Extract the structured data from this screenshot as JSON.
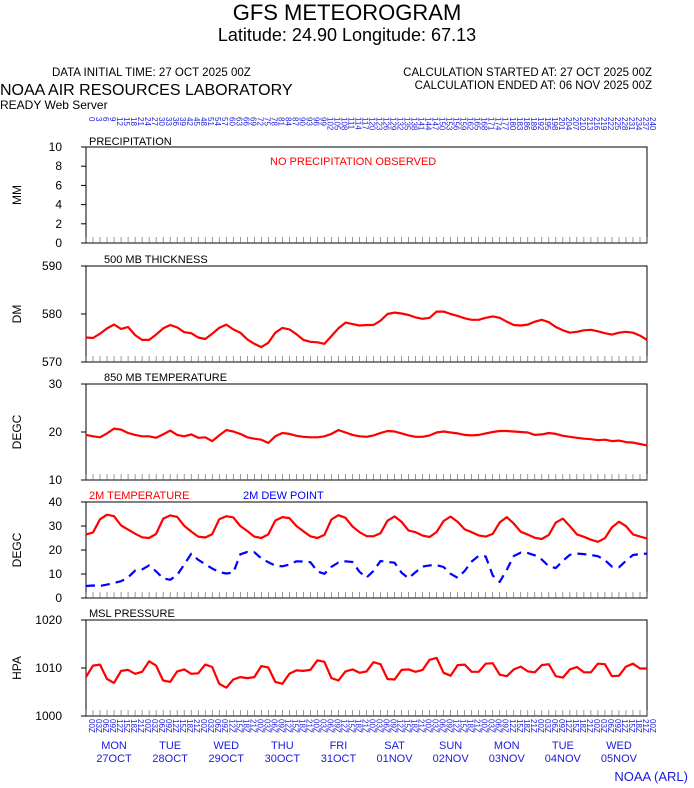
{
  "header": {
    "title": "GFS METEOROGRAM",
    "subtitle": "Latitude: 24.90 Longitude:  67.13",
    "data_initial_time": "DATA INITIAL TIME: 27 OCT 2025 00Z",
    "calc_started": "CALCULATION STARTED AT: 27 OCT 2025 00Z",
    "calc_ended": "CALCULATION ENDED AT: 06 NOV 2025 00Z",
    "lab": "NOAA AIR RESOURCES LABORATORY",
    "server": "READY Web Server"
  },
  "footer": {
    "credit": "NOAA (ARL)"
  },
  "colors": {
    "red": "#ff0000",
    "blue": "#0000ff",
    "axis_blue": "#1a1adc",
    "grid": "#000000"
  },
  "chart_data": {
    "type": "line",
    "forecast_hours": [
      "0",
      "3",
      "6",
      "9",
      "12",
      "15",
      "18",
      "21",
      "24",
      "27",
      "30",
      "33",
      "36",
      "39",
      "42",
      "45",
      "48",
      "51",
      "54",
      "57",
      "60",
      "63",
      "66",
      "69",
      "72",
      "75",
      "78",
      "81",
      "84",
      "87",
      "90",
      "93",
      "96",
      "99",
      "102",
      "105",
      "108",
      "111",
      "114",
      "117",
      "120",
      "123",
      "126",
      "129",
      "132",
      "135",
      "138",
      "141",
      "144",
      "147",
      "150",
      "153",
      "156",
      "159",
      "162",
      "165",
      "168",
      "171",
      "174",
      "177",
      "180",
      "183",
      "186",
      "189",
      "192",
      "195",
      "198",
      "201",
      "204",
      "207",
      "210",
      "213",
      "216",
      "219",
      "222",
      "225",
      "228",
      "231",
      "234",
      "237",
      "240"
    ],
    "time_labels": [
      "00Z",
      "03Z",
      "06Z",
      "09Z",
      "12Z",
      "15Z",
      "18Z",
      "21Z",
      "00Z",
      "03Z",
      "06Z",
      "09Z",
      "12Z",
      "15Z",
      "18Z",
      "21Z",
      "00Z",
      "03Z",
      "06Z",
      "09Z",
      "12Z",
      "15Z",
      "18Z",
      "21Z",
      "00Z",
      "03Z",
      "06Z",
      "09Z",
      "12Z",
      "15Z",
      "18Z",
      "21Z",
      "00Z",
      "03Z",
      "06Z",
      "09Z",
      "12Z",
      "15Z",
      "18Z",
      "21Z",
      "00Z",
      "03Z",
      "06Z",
      "09Z",
      "12Z",
      "15Z",
      "18Z",
      "21Z",
      "00Z",
      "03Z",
      "06Z",
      "09Z",
      "12Z",
      "15Z",
      "18Z",
      "21Z",
      "00Z",
      "03Z",
      "06Z",
      "09Z",
      "12Z",
      "15Z",
      "18Z",
      "21Z",
      "00Z",
      "03Z",
      "06Z",
      "09Z",
      "12Z",
      "15Z",
      "18Z",
      "21Z",
      "00Z",
      "03Z",
      "06Z",
      "09Z",
      "12Z",
      "15Z",
      "18Z",
      "21Z",
      "00Z"
    ],
    "days": [
      {
        "weekday": "MON",
        "date": "27OCT"
      },
      {
        "weekday": "TUE",
        "date": "28OCT"
      },
      {
        "weekday": "WED",
        "date": "29OCT"
      },
      {
        "weekday": "THU",
        "date": "30OCT"
      },
      {
        "weekday": "FRI",
        "date": "31OCT"
      },
      {
        "weekday": "SAT",
        "date": "01NOV"
      },
      {
        "weekday": "SUN",
        "date": "02NOV"
      },
      {
        "weekday": "MON",
        "date": "03NOV"
      },
      {
        "weekday": "TUE",
        "date": "04NOV"
      },
      {
        "weekday": "WED",
        "date": "05NOV"
      }
    ],
    "panels": [
      {
        "label": "PRECIPITATION",
        "ylabel": "MM",
        "ylim": [
          0,
          10
        ],
        "yticks": [
          "0",
          "2",
          "4",
          "6",
          "8",
          "10"
        ],
        "annotation": "NO PRECIPITATION OBSERVED",
        "series": []
      },
      {
        "label": "500 MB  THICKNESS",
        "ylabel": "DM",
        "ylim": [
          570,
          590
        ],
        "yticks": [
          "570",
          "580",
          "590"
        ],
        "series": [
          {
            "color": "red",
            "dashed": false,
            "values": [
              575.1,
              575.0,
              575.9,
              577.0,
              577.8,
              576.9,
              577.3,
              575.6,
              574.6,
              574.6,
              575.7,
              577.0,
              577.7,
              577.2,
              576.2,
              576.0,
              575.1,
              574.8,
              575.9,
              577.1,
              577.8,
              576.8,
              576.1,
              574.7,
              573.8,
              573.1,
              574.0,
              576.1,
              577.1,
              576.8,
              575.8,
              574.6,
              574.2,
              574.1,
              573.8,
              575.4,
              577.0,
              578.2,
              577.9,
              577.6,
              577.7,
              577.7,
              578.6,
              580.0,
              580.3,
              580.1,
              579.8,
              579.3,
              579.0,
              579.2,
              580.5,
              580.5,
              580.0,
              579.6,
              579.1,
              578.8,
              578.8,
              579.2,
              579.5,
              579.2,
              578.4,
              577.7,
              577.6,
              577.8,
              578.4,
              578.8,
              578.3,
              577.3,
              576.6,
              576.1,
              576.3,
              576.6,
              576.7,
              576.4,
              576.0,
              575.7,
              576.1,
              576.3,
              576.1,
              575.5,
              574.6
            ]
          }
        ]
      },
      {
        "label": "850 MB  TEMPERATURE",
        "ylabel": "DEGC",
        "ylim": [
          10,
          30
        ],
        "yticks": [
          "10",
          "20",
          "30"
        ],
        "series": [
          {
            "color": "red",
            "dashed": false,
            "values": [
              19.4,
              19.1,
              18.9,
              19.7,
              20.7,
              20.5,
              19.8,
              19.4,
              19.1,
              19.1,
              18.8,
              19.5,
              20.3,
              19.4,
              19.1,
              19.5,
              18.8,
              18.9,
              18.1,
              19.3,
              20.4,
              20.1,
              19.6,
              18.9,
              18.6,
              18.4,
              17.7,
              19.1,
              19.8,
              19.6,
              19.2,
              19.0,
              18.9,
              18.9,
              19.1,
              19.6,
              20.4,
              19.9,
              19.4,
              19.1,
              19.0,
              19.3,
              19.8,
              20.2,
              20.1,
              19.7,
              19.3,
              19.0,
              19.0,
              19.3,
              19.9,
              20.1,
              19.9,
              19.7,
              19.4,
              19.3,
              19.4,
              19.7,
              20.0,
              20.2,
              20.2,
              20.1,
              20.0,
              19.9,
              19.4,
              19.5,
              19.8,
              19.6,
              19.2,
              19.0,
              18.8,
              18.6,
              18.5,
              18.3,
              18.4,
              18.1,
              18.2,
              17.9,
              17.8,
              17.5,
              17.2
            ]
          }
        ]
      },
      {
        "label": "2M TEMPERATURE",
        "label2": "2M  DEW POINT",
        "ylabel": "DEGC",
        "ylim": [
          0,
          40
        ],
        "yticks": [
          "0",
          "10",
          "20",
          "30",
          "40"
        ],
        "series": [
          {
            "name": "2M TEMPERATURE",
            "color": "red",
            "dashed": false,
            "values": [
              26.5,
              27.3,
              32.8,
              34.7,
              34.1,
              30.2,
              28.5,
              26.8,
              25.3,
              25.0,
              26.7,
              33.0,
              34.4,
              33.8,
              30.1,
              27.7,
              25.6,
              25.2,
              26.6,
              32.8,
              34.1,
              33.6,
              30.0,
              27.9,
              25.6,
              25.0,
              26.5,
              32.3,
              33.7,
              33.3,
              30.0,
              27.8,
              25.7,
              25.0,
              26.3,
              32.7,
              34.5,
              33.4,
              29.8,
              27.4,
              25.8,
              25.7,
              27.0,
              32.2,
              34.0,
              31.7,
              28.1,
              27.4,
              26.0,
              25.4,
              27.5,
              32.1,
              33.9,
              31.7,
              28.6,
              27.4,
              26.1,
              25.6,
              26.7,
              31.5,
              33.7,
              31.0,
              27.6,
              26.4,
              25.1,
              24.6,
              26.3,
              31.4,
              33.1,
              29.9,
              26.5,
              25.5,
              24.3,
              23.4,
              24.9,
              29.4,
              31.8,
              29.9,
              26.5,
              25.6,
              24.8
            ]
          },
          {
            "name": "2M  DEW POINT",
            "color": "blue",
            "dashed": true,
            "values": [
              5.0,
              5.2,
              5.0,
              5.6,
              6.3,
              7.0,
              8.6,
              11.4,
              11.9,
              13.6,
              11.1,
              8.2,
              7.6,
              9.6,
              13.9,
              18.4,
              15.9,
              14.1,
              12.3,
              10.8,
              10.2,
              10.6,
              18.2,
              19.2,
              19.1,
              16.5,
              14.9,
              13.5,
              13.2,
              13.9,
              15.3,
              15.2,
              14.9,
              11.1,
              10.1,
              13.0,
              14.8,
              15.3,
              15.0,
              10.9,
              8.5,
              11.3,
              15.4,
              15.0,
              14.7,
              10.5,
              8.2,
              10.8,
              13.1,
              13.6,
              13.7,
              12.9,
              10.1,
              8.4,
              11.3,
              15.2,
              17.6,
              17.3,
              9.4,
              6.7,
              11.8,
              17.5,
              18.9,
              18.7,
              17.8,
              16.0,
              13.2,
              12.5,
              15.5,
              18.0,
              18.5,
              18.3,
              17.9,
              17.4,
              15.8,
              13.1,
              12.8,
              15.5,
              17.9,
              18.3,
              18.5
            ]
          }
        ]
      },
      {
        "label": "MSL PRESSURE",
        "ylabel": "HPA",
        "ylim": [
          1000,
          1020
        ],
        "yticks": [
          "1000",
          "1010",
          "1020"
        ],
        "series": [
          {
            "color": "red",
            "dashed": false,
            "values": [
              1008.1,
              1010.5,
              1010.7,
              1007.7,
              1006.9,
              1009.4,
              1009.6,
              1008.8,
              1009.2,
              1011.4,
              1010.5,
              1007.4,
              1007.1,
              1009.3,
              1009.7,
              1008.8,
              1008.9,
              1010.7,
              1010.2,
              1006.7,
              1005.9,
              1007.6,
              1008.1,
              1007.9,
              1008.1,
              1010.4,
              1010.1,
              1007.1,
              1006.7,
              1008.8,
              1009.5,
              1009.4,
              1009.6,
              1011.6,
              1011.3,
              1007.9,
              1007.4,
              1009.3,
              1009.7,
              1009.0,
              1009.3,
              1011.2,
              1010.8,
              1007.7,
              1007.6,
              1009.6,
              1009.7,
              1009.2,
              1009.6,
              1011.7,
              1012.1,
              1009.0,
              1008.4,
              1010.6,
              1010.7,
              1009.2,
              1009.2,
              1010.9,
              1011.0,
              1008.6,
              1008.3,
              1009.7,
              1010.3,
              1009.3,
              1009.1,
              1010.6,
              1010.8,
              1008.3,
              1008.0,
              1009.7,
              1010.2,
              1009.1,
              1009.1,
              1010.9,
              1010.8,
              1008.3,
              1008.4,
              1010.3,
              1010.9,
              1009.9,
              1009.9
            ]
          }
        ]
      }
    ]
  }
}
